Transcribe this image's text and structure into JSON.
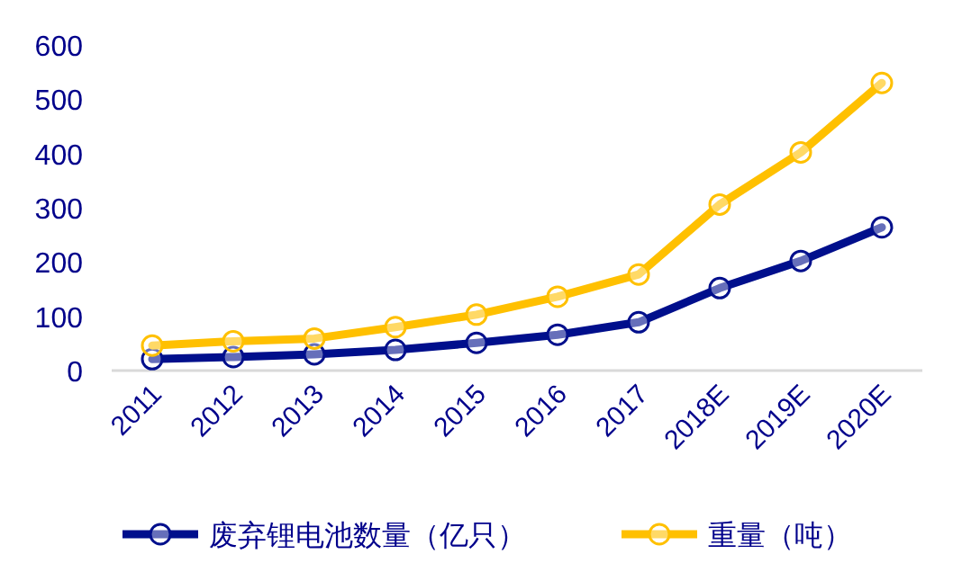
{
  "chart_data": {
    "type": "line",
    "categories": [
      "2011",
      "2012",
      "2013",
      "2014",
      "2015",
      "2016",
      "2017",
      "2018E",
      "2019E",
      "2020E"
    ],
    "series": [
      {
        "name": "废弃锂电池数量（亿只）",
        "color": "#000f8c",
        "values": [
          21,
          25,
          30,
          38,
          51,
          66,
          89,
          152,
          202,
          264
        ]
      },
      {
        "name": "重量（吨）",
        "color": "#ffc000",
        "values": [
          46,
          54,
          59,
          80,
          103,
          136,
          177,
          306,
          402,
          530
        ]
      }
    ],
    "ylim": [
      0,
      600
    ],
    "yticks": [
      0,
      100,
      200,
      300,
      400,
      500,
      600
    ],
    "grid": false,
    "legend": "bottom",
    "marker": "circle",
    "line_style": "solid"
  }
}
